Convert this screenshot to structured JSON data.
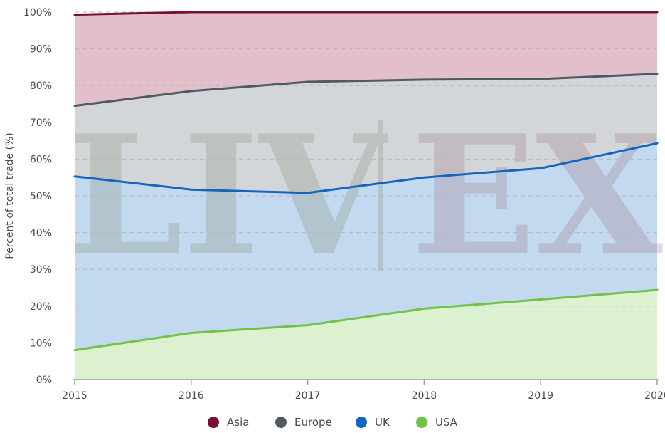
{
  "chart_data": {
    "type": "area",
    "stacked_cumulative": true,
    "x": [
      2015,
      2016,
      2017,
      2018,
      2019,
      2020
    ],
    "ylabel": "Percent of total trade (%)",
    "ylim": [
      0,
      100
    ],
    "yticks": [
      "0%",
      "10%",
      "20%",
      "30%",
      "40%",
      "50%",
      "60%",
      "70%",
      "80%",
      "90%",
      "100%"
    ],
    "xticks": [
      "2015",
      "2016",
      "2017",
      "2018",
      "2019",
      "2020"
    ],
    "grid": true,
    "legend_position": "bottom",
    "watermark": "LIV-EX",
    "series": [
      {
        "name": "Asia",
        "line_color": "#7a0f30",
        "fill_color": "#e3bfcb",
        "values": [
          99.3,
          100,
          100,
          100,
          100,
          100
        ]
      },
      {
        "name": "Europe",
        "line_color": "#4f5a63",
        "fill_color": "#d2d6d9",
        "values": [
          74.5,
          78.5,
          81,
          81.6,
          81.8,
          83.2
        ]
      },
      {
        "name": "UK",
        "line_color": "#1565c0",
        "fill_color": "#c3d9f0",
        "values": [
          55.3,
          51.7,
          50.8,
          55,
          57.5,
          64.3
        ]
      },
      {
        "name": "USA",
        "line_color": "#72c245",
        "fill_color": "#dcf1d0",
        "values": [
          8,
          12.7,
          14.8,
          19.3,
          21.8,
          24.4
        ]
      }
    ]
  }
}
